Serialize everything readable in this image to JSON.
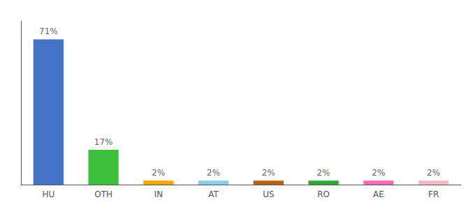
{
  "chart_data": {
    "type": "bar",
    "categories": [
      "HU",
      "OTH",
      "IN",
      "AT",
      "US",
      "RO",
      "AE",
      "FR"
    ],
    "values": [
      71,
      17,
      2,
      2,
      2,
      2,
      2,
      2
    ],
    "value_labels": [
      "71%",
      "17%",
      "2%",
      "2%",
      "2%",
      "2%",
      "2%",
      "2%"
    ],
    "colors": [
      "#4472C4",
      "#3DBF3D",
      "#FFA500",
      "#87CEEB",
      "#B8620A",
      "#2EA82E",
      "#FF69B4",
      "#FFB6C1"
    ],
    "ylim": [
      0,
      80
    ],
    "data_labels": true,
    "tick_labels": "x",
    "grid": false
  }
}
